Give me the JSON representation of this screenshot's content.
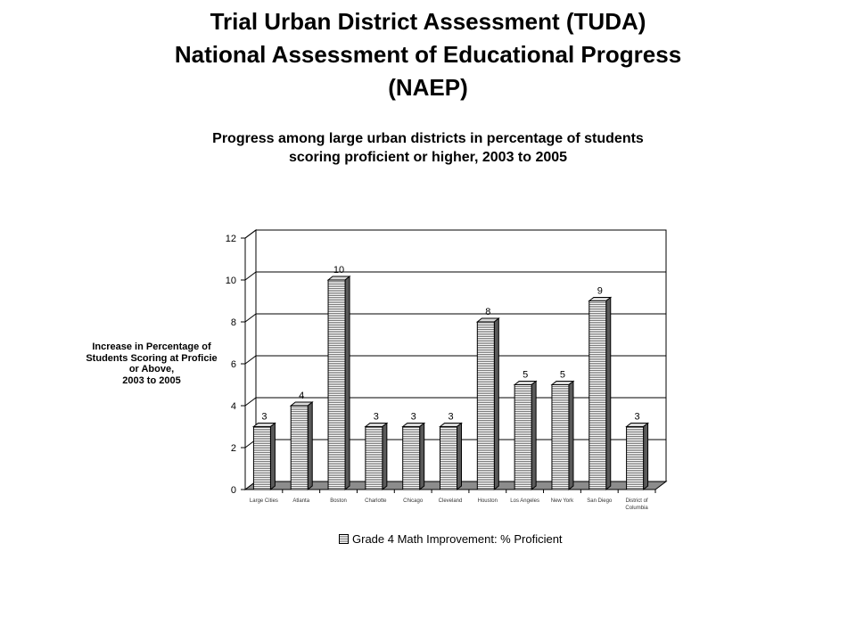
{
  "page": {
    "title_lines": [
      "Trial Urban District Assessment (TUDA)",
      "National Assessment of Educational Progress",
      "(NAEP)"
    ],
    "subtitle_lines": [
      "Progress among large urban districts in percentage of students",
      "scoring proficient or higher, 2003 to 2005"
    ]
  },
  "chart_data": {
    "type": "bar",
    "title": "Trial Urban District Assessment (TUDA) National Assessment of Educational Progress (NAEP)",
    "subtitle": "Progress among large urban districts in percentage of students scoring proficient or higher, 2003 to 2005",
    "ylabel_lines": [
      "Increase in Percentage of",
      "Students Scoring at Proficie",
      "or Above,",
      "2003 to 2005"
    ],
    "xlabel": "",
    "categories": [
      [
        "Large Cities"
      ],
      [
        "Atlanta"
      ],
      [
        "Boston"
      ],
      [
        "Charlotte"
      ],
      [
        "Chicago"
      ],
      [
        "Cleveland"
      ],
      [
        "Houston"
      ],
      [
        "Los Angeles"
      ],
      [
        "New York"
      ],
      [
        "San Diego"
      ],
      [
        "District of",
        "Columbia"
      ]
    ],
    "series": [
      {
        "name": "Grade 4 Math Improvement: % Proficient",
        "values": [
          3,
          4,
          10,
          3,
          3,
          3,
          8,
          5,
          5,
          9,
          3
        ]
      }
    ],
    "ylim": [
      0,
      12
    ],
    "yticks": [
      0,
      2,
      4,
      6,
      8,
      10,
      12
    ],
    "grid": true,
    "style": "3d-bar",
    "legend_position": "bottom"
  }
}
